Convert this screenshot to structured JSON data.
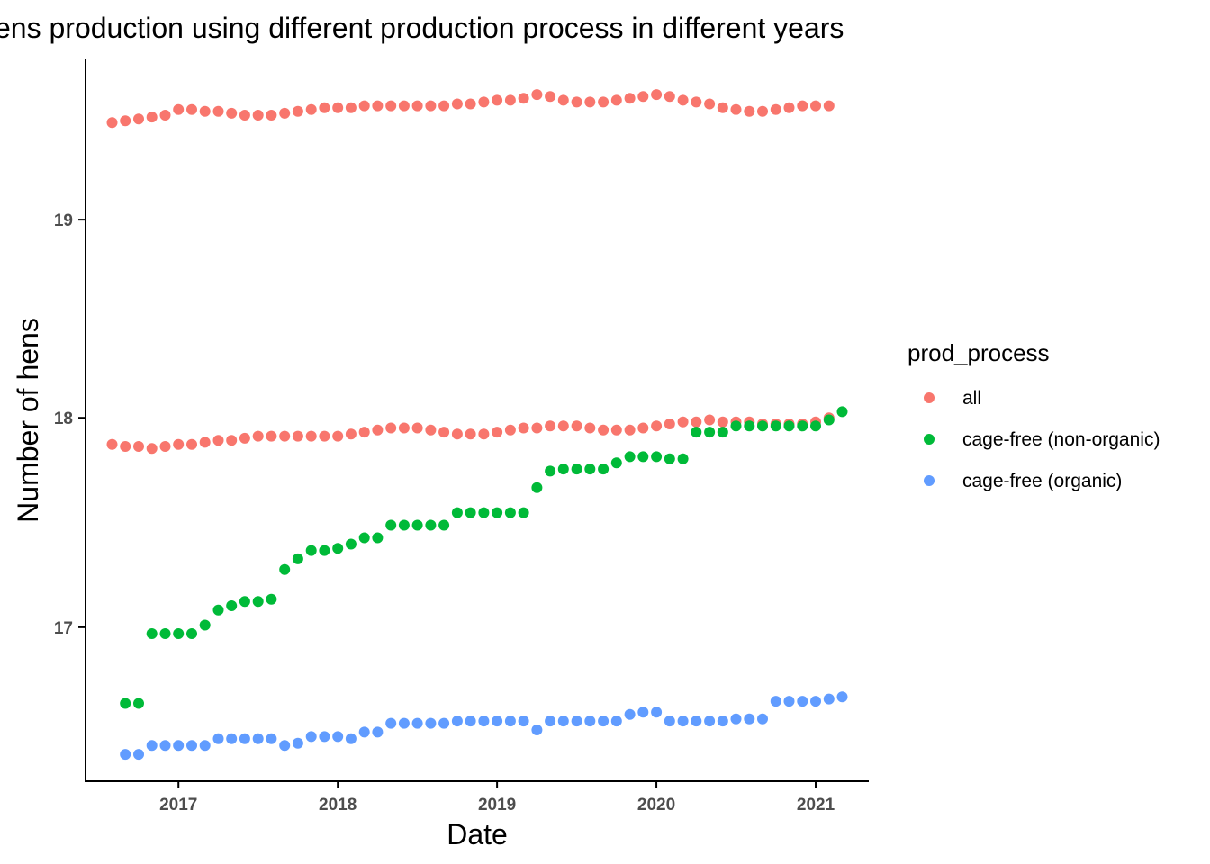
{
  "chart_data": {
    "type": "scatter",
    "title": "ens production using different production process in different years",
    "xlabel": "Date",
    "ylabel": "Number of hens",
    "x_ticks": [
      "2017",
      "2018",
      "2019",
      "2020",
      "2021"
    ],
    "y_ticks": [
      "17",
      "18",
      "19"
    ],
    "xlim": [
      "2016-06",
      "2021-05"
    ],
    "ylim": [
      16.3,
      19.85
    ],
    "y_scale": "log",
    "grid": false,
    "legend": {
      "title": "prod_process",
      "position": "right"
    },
    "series": [
      {
        "name": "all",
        "color": "#F8766D",
        "points": [
          [
            "2016-08",
            19.51
          ],
          [
            "2016-09",
            19.52
          ],
          [
            "2016-10",
            19.53
          ],
          [
            "2016-11",
            19.54
          ],
          [
            "2016-12",
            19.55
          ],
          [
            "2017-01",
            19.58
          ],
          [
            "2017-02",
            19.58
          ],
          [
            "2017-03",
            19.57
          ],
          [
            "2017-04",
            19.57
          ],
          [
            "2017-05",
            19.56
          ],
          [
            "2017-06",
            19.55
          ],
          [
            "2017-07",
            19.55
          ],
          [
            "2017-08",
            19.55
          ],
          [
            "2017-09",
            19.56
          ],
          [
            "2017-10",
            19.57
          ],
          [
            "2017-11",
            19.58
          ],
          [
            "2017-12",
            19.59
          ],
          [
            "2018-01",
            19.59
          ],
          [
            "2018-02",
            19.59
          ],
          [
            "2018-03",
            19.6
          ],
          [
            "2018-04",
            19.6
          ],
          [
            "2018-05",
            19.6
          ],
          [
            "2018-06",
            19.6
          ],
          [
            "2018-07",
            19.6
          ],
          [
            "2018-08",
            19.6
          ],
          [
            "2018-09",
            19.6
          ],
          [
            "2018-10",
            19.61
          ],
          [
            "2018-11",
            19.61
          ],
          [
            "2018-12",
            19.62
          ],
          [
            "2019-01",
            19.63
          ],
          [
            "2019-02",
            19.63
          ],
          [
            "2019-03",
            19.64
          ],
          [
            "2019-04",
            19.66
          ],
          [
            "2019-05",
            19.65
          ],
          [
            "2019-06",
            19.63
          ],
          [
            "2019-07",
            19.62
          ],
          [
            "2019-08",
            19.62
          ],
          [
            "2019-09",
            19.62
          ],
          [
            "2019-10",
            19.63
          ],
          [
            "2019-11",
            19.64
          ],
          [
            "2019-12",
            19.65
          ],
          [
            "2020-01",
            19.66
          ],
          [
            "2020-02",
            19.65
          ],
          [
            "2020-03",
            19.63
          ],
          [
            "2020-04",
            19.62
          ],
          [
            "2020-05",
            19.61
          ],
          [
            "2020-06",
            19.59
          ],
          [
            "2020-07",
            19.58
          ],
          [
            "2020-08",
            19.57
          ],
          [
            "2020-09",
            19.57
          ],
          [
            "2020-10",
            19.58
          ],
          [
            "2020-11",
            19.59
          ],
          [
            "2020-12",
            19.6
          ],
          [
            "2021-01",
            19.6
          ],
          [
            "2021-02",
            19.6
          ],
          [
            "2016-08",
            17.87
          ],
          [
            "2016-09",
            17.86
          ],
          [
            "2016-10",
            17.86
          ],
          [
            "2016-11",
            17.85
          ],
          [
            "2016-12",
            17.86
          ],
          [
            "2017-01",
            17.87
          ],
          [
            "2017-02",
            17.87
          ],
          [
            "2017-03",
            17.88
          ],
          [
            "2017-04",
            17.89
          ],
          [
            "2017-05",
            17.89
          ],
          [
            "2017-06",
            17.9
          ],
          [
            "2017-07",
            17.91
          ],
          [
            "2017-08",
            17.91
          ],
          [
            "2017-09",
            17.91
          ],
          [
            "2017-10",
            17.91
          ],
          [
            "2017-11",
            17.91
          ],
          [
            "2017-12",
            17.91
          ],
          [
            "2018-01",
            17.91
          ],
          [
            "2018-02",
            17.92
          ],
          [
            "2018-03",
            17.93
          ],
          [
            "2018-04",
            17.94
          ],
          [
            "2018-05",
            17.95
          ],
          [
            "2018-06",
            17.95
          ],
          [
            "2018-07",
            17.95
          ],
          [
            "2018-08",
            17.94
          ],
          [
            "2018-09",
            17.93
          ],
          [
            "2018-10",
            17.92
          ],
          [
            "2018-11",
            17.92
          ],
          [
            "2018-12",
            17.92
          ],
          [
            "2019-01",
            17.93
          ],
          [
            "2019-02",
            17.94
          ],
          [
            "2019-03",
            17.95
          ],
          [
            "2019-04",
            17.95
          ],
          [
            "2019-05",
            17.96
          ],
          [
            "2019-06",
            17.96
          ],
          [
            "2019-07",
            17.96
          ],
          [
            "2019-08",
            17.95
          ],
          [
            "2019-09",
            17.94
          ],
          [
            "2019-10",
            17.94
          ],
          [
            "2019-11",
            17.94
          ],
          [
            "2019-12",
            17.95
          ],
          [
            "2020-01",
            17.96
          ],
          [
            "2020-02",
            17.97
          ],
          [
            "2020-03",
            17.98
          ],
          [
            "2020-04",
            17.98
          ],
          [
            "2020-05",
            17.99
          ],
          [
            "2020-06",
            17.98
          ],
          [
            "2020-07",
            17.98
          ],
          [
            "2020-08",
            17.98
          ],
          [
            "2020-09",
            17.97
          ],
          [
            "2020-10",
            17.97
          ],
          [
            "2020-11",
            17.97
          ],
          [
            "2020-12",
            17.97
          ],
          [
            "2021-01",
            17.98
          ],
          [
            "2021-02",
            18.0
          ]
        ]
      },
      {
        "name": "cage-free (non-organic)",
        "color": "#00BA38",
        "points": [
          [
            "2016-09",
            16.65
          ],
          [
            "2016-10",
            16.65
          ],
          [
            "2016-11",
            16.97
          ],
          [
            "2016-12",
            16.97
          ],
          [
            "2017-01",
            16.97
          ],
          [
            "2017-02",
            16.97
          ],
          [
            "2017-03",
            17.01
          ],
          [
            "2017-04",
            17.08
          ],
          [
            "2017-05",
            17.1
          ],
          [
            "2017-06",
            17.12
          ],
          [
            "2017-07",
            17.12
          ],
          [
            "2017-08",
            17.13
          ],
          [
            "2017-09",
            17.27
          ],
          [
            "2017-10",
            17.32
          ],
          [
            "2017-11",
            17.36
          ],
          [
            "2017-12",
            17.36
          ],
          [
            "2018-01",
            17.37
          ],
          [
            "2018-02",
            17.39
          ],
          [
            "2018-03",
            17.42
          ],
          [
            "2018-04",
            17.42
          ],
          [
            "2018-05",
            17.48
          ],
          [
            "2018-06",
            17.48
          ],
          [
            "2018-07",
            17.48
          ],
          [
            "2018-08",
            17.48
          ],
          [
            "2018-09",
            17.48
          ],
          [
            "2018-10",
            17.54
          ],
          [
            "2018-11",
            17.54
          ],
          [
            "2018-12",
            17.54
          ],
          [
            "2019-01",
            17.54
          ],
          [
            "2019-02",
            17.54
          ],
          [
            "2019-03",
            17.54
          ],
          [
            "2019-04",
            17.66
          ],
          [
            "2019-05",
            17.74
          ],
          [
            "2019-06",
            17.75
          ],
          [
            "2019-07",
            17.75
          ],
          [
            "2019-08",
            17.75
          ],
          [
            "2019-09",
            17.75
          ],
          [
            "2019-10",
            17.78
          ],
          [
            "2019-11",
            17.81
          ],
          [
            "2019-12",
            17.81
          ],
          [
            "2020-01",
            17.81
          ],
          [
            "2020-02",
            17.8
          ],
          [
            "2020-03",
            17.8
          ],
          [
            "2020-04",
            17.93
          ],
          [
            "2020-05",
            17.93
          ],
          [
            "2020-06",
            17.93
          ],
          [
            "2020-07",
            17.96
          ],
          [
            "2020-08",
            17.96
          ],
          [
            "2020-09",
            17.96
          ],
          [
            "2020-10",
            17.96
          ],
          [
            "2020-11",
            17.96
          ],
          [
            "2020-12",
            17.96
          ],
          [
            "2021-01",
            17.96
          ],
          [
            "2021-02",
            17.99
          ],
          [
            "2021-03",
            18.03
          ]
        ]
      },
      {
        "name": "cage-free (organic)",
        "color": "#619CFF",
        "points": [
          [
            "2016-09",
            16.42
          ],
          [
            "2016-10",
            16.42
          ],
          [
            "2016-11",
            16.46
          ],
          [
            "2016-12",
            16.46
          ],
          [
            "2017-01",
            16.46
          ],
          [
            "2017-02",
            16.46
          ],
          [
            "2017-03",
            16.46
          ],
          [
            "2017-04",
            16.49
          ],
          [
            "2017-05",
            16.49
          ],
          [
            "2017-06",
            16.49
          ],
          [
            "2017-07",
            16.49
          ],
          [
            "2017-08",
            16.49
          ],
          [
            "2017-09",
            16.46
          ],
          [
            "2017-10",
            16.47
          ],
          [
            "2017-11",
            16.5
          ],
          [
            "2017-12",
            16.5
          ],
          [
            "2018-01",
            16.5
          ],
          [
            "2018-02",
            16.49
          ],
          [
            "2018-03",
            16.52
          ],
          [
            "2018-04",
            16.52
          ],
          [
            "2018-05",
            16.56
          ],
          [
            "2018-06",
            16.56
          ],
          [
            "2018-07",
            16.56
          ],
          [
            "2018-08",
            16.56
          ],
          [
            "2018-09",
            16.56
          ],
          [
            "2018-10",
            16.57
          ],
          [
            "2018-11",
            16.57
          ],
          [
            "2018-12",
            16.57
          ],
          [
            "2019-01",
            16.57
          ],
          [
            "2019-02",
            16.57
          ],
          [
            "2019-03",
            16.57
          ],
          [
            "2019-04",
            16.53
          ],
          [
            "2019-05",
            16.57
          ],
          [
            "2019-06",
            16.57
          ],
          [
            "2019-07",
            16.57
          ],
          [
            "2019-08",
            16.57
          ],
          [
            "2019-09",
            16.57
          ],
          [
            "2019-10",
            16.57
          ],
          [
            "2019-11",
            16.6
          ],
          [
            "2019-12",
            16.61
          ],
          [
            "2020-01",
            16.61
          ],
          [
            "2020-02",
            16.57
          ],
          [
            "2020-03",
            16.57
          ],
          [
            "2020-04",
            16.57
          ],
          [
            "2020-05",
            16.57
          ],
          [
            "2020-06",
            16.57
          ],
          [
            "2020-07",
            16.58
          ],
          [
            "2020-08",
            16.58
          ],
          [
            "2020-09",
            16.58
          ],
          [
            "2020-10",
            16.66
          ],
          [
            "2020-11",
            16.66
          ],
          [
            "2020-12",
            16.66
          ],
          [
            "2021-01",
            16.66
          ],
          [
            "2021-02",
            16.67
          ],
          [
            "2021-03",
            16.68
          ]
        ]
      }
    ]
  }
}
